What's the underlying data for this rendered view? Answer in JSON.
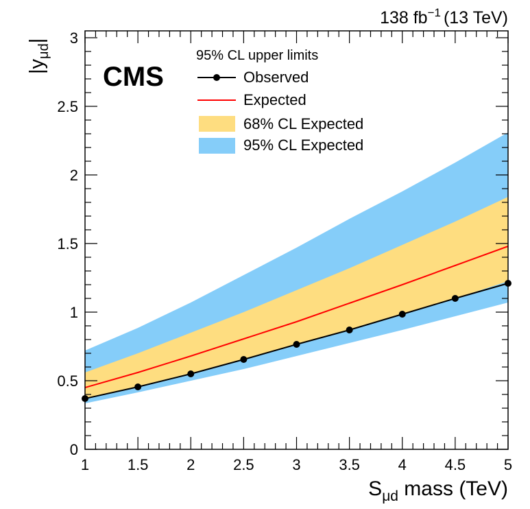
{
  "chart_data": {
    "type": "line",
    "lumi_label": {
      "value": "138 fb",
      "exponent": "−1",
      "energy": "(13 TeV)"
    },
    "experiment_label": "CMS",
    "ylabel": {
      "prefix": "|y",
      "subscript": "μd",
      "suffix": "|"
    },
    "xlabel": {
      "prefix": "S",
      "subscript": "μd",
      "suffix": " mass (TeV)"
    },
    "xlim": [
      1,
      5
    ],
    "ylim": [
      0,
      3.05
    ],
    "x_ticks": [
      "1",
      "1.5",
      "2",
      "2.5",
      "3",
      "3.5",
      "4",
      "4.5",
      "5"
    ],
    "y_ticks": [
      "0",
      "0.5",
      "1",
      "1.5",
      "2",
      "2.5",
      "3"
    ],
    "legend": {
      "header": "95% CL upper limits",
      "position": "top-center",
      "entries": [
        "Observed",
        "Expected",
        "68% CL Expected",
        "95% CL Expected"
      ]
    },
    "colors": {
      "observed": "#000000",
      "expected": "#ff0000",
      "band68": "#fedd80",
      "band95": "#85cdf9"
    },
    "x": [
      1.0,
      1.5,
      2.0,
      2.5,
      3.0,
      3.5,
      4.0,
      4.5,
      5.0
    ],
    "observed": [
      0.37,
      0.455,
      0.55,
      0.655,
      0.765,
      0.87,
      0.985,
      1.1,
      1.21
    ],
    "expected": [
      0.45,
      0.56,
      0.68,
      0.805,
      0.93,
      1.065,
      1.2,
      1.34,
      1.48
    ],
    "band68_low": [
      0.37,
      0.46,
      0.555,
      0.66,
      0.765,
      0.875,
      0.99,
      1.1,
      1.225
    ],
    "band68_high": [
      0.56,
      0.7,
      0.85,
      1.0,
      1.16,
      1.32,
      1.49,
      1.66,
      1.84
    ],
    "band95_low": [
      0.335,
      0.415,
      0.5,
      0.585,
      0.68,
      0.775,
      0.87,
      0.97,
      1.07
    ],
    "band95_high": [
      0.72,
      0.885,
      1.07,
      1.27,
      1.47,
      1.68,
      1.88,
      2.09,
      2.31
    ]
  }
}
